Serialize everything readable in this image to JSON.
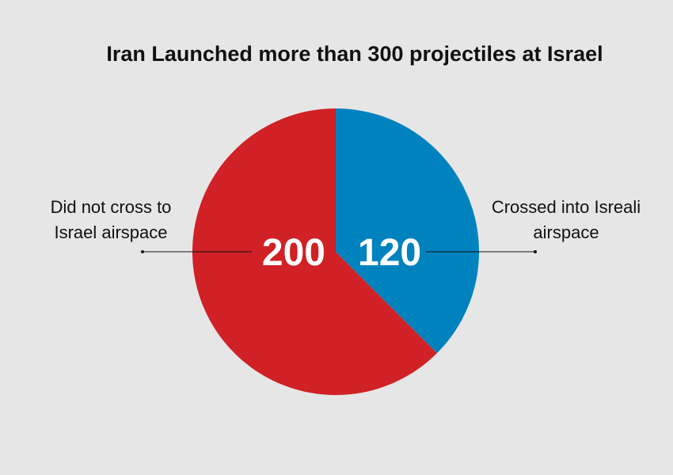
{
  "chart_data": {
    "type": "pie",
    "title": "Iran Launched more than 300 projectiles at Israel",
    "categories": [
      "Crossed into Isreali airspace",
      "Did not cross to Israel airspace"
    ],
    "values": [
      120,
      200
    ],
    "colors": [
      "#0082bf",
      "#d02126"
    ]
  }
}
